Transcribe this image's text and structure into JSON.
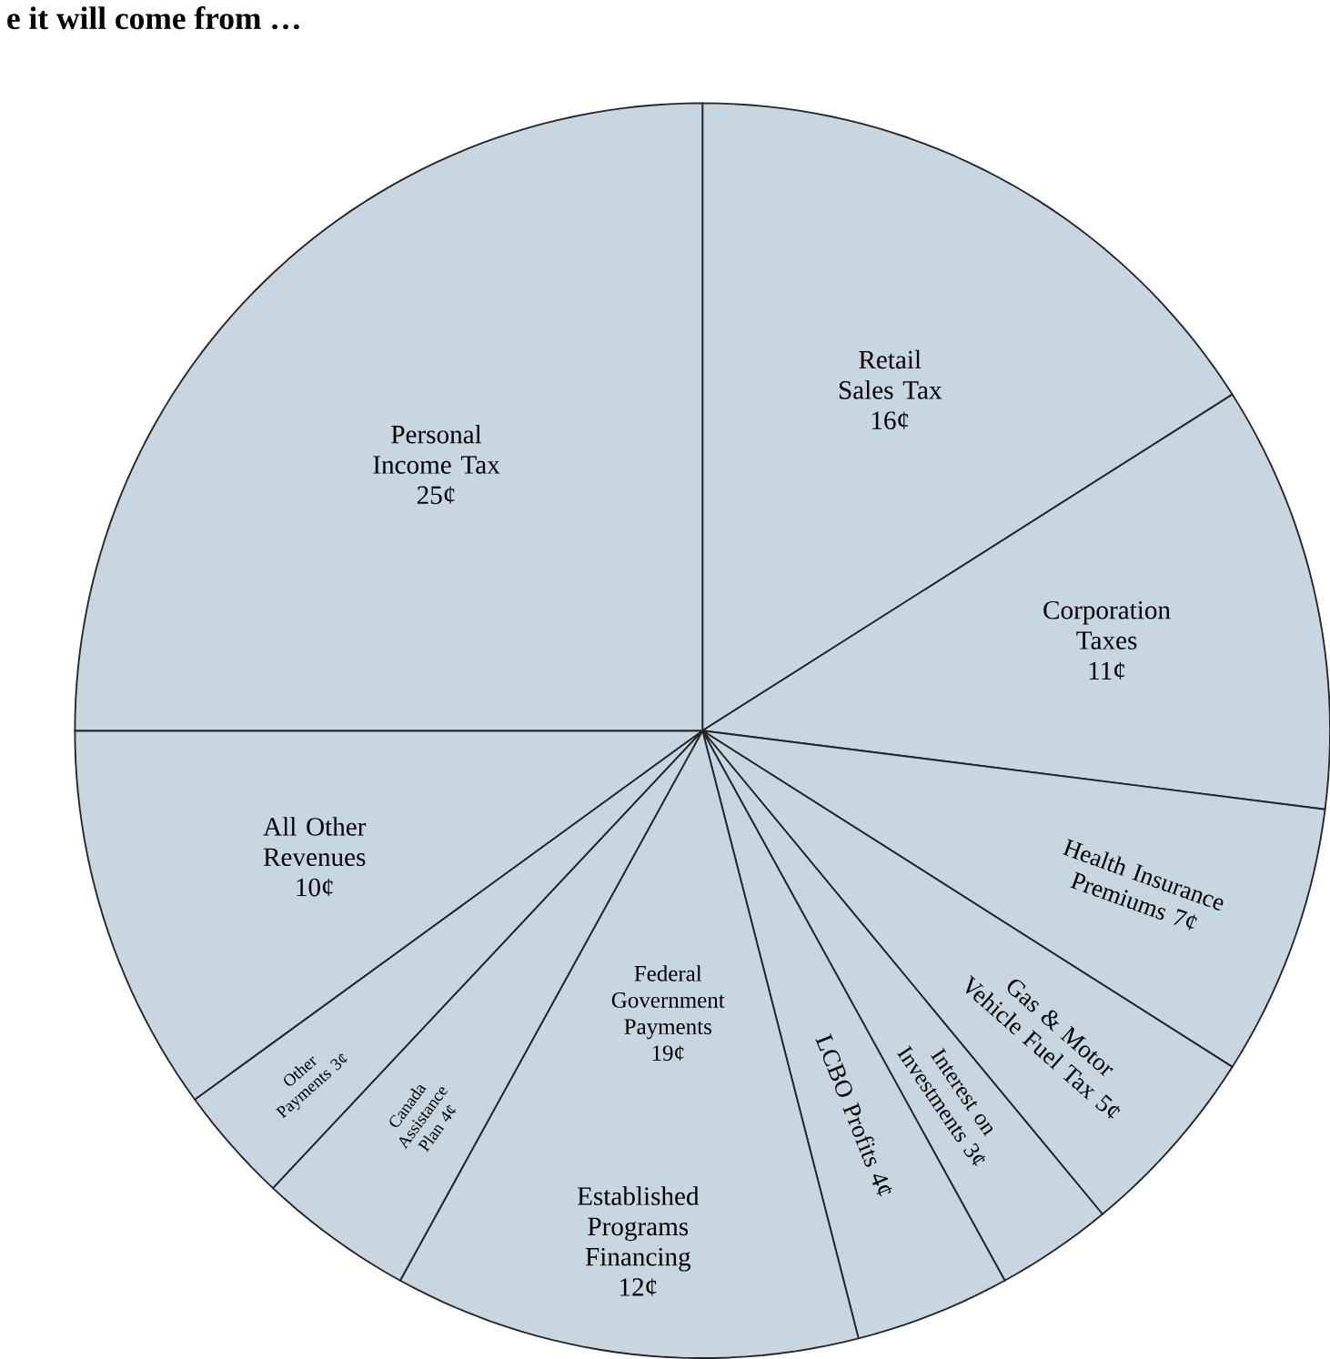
{
  "chart_data": {
    "type": "pie",
    "title": "e it will come from …",
    "categories": [
      "Retail Sales Tax",
      "Corporation Taxes",
      "Health Insurance Premiums",
      "Gas & Motor Vehicle Fuel Tax",
      "Interest on Investments",
      "LCBO Profits",
      "Established Programs Financing",
      "Canada Assistance Plan",
      "Other Payments",
      "All Other Revenues",
      "Personal Income Tax"
    ],
    "values": [
      16,
      11,
      7,
      5,
      3,
      4,
      12,
      4,
      3,
      10,
      25
    ],
    "value_labels": [
      "16¢",
      "11¢",
      "7¢",
      "5¢",
      "3¢",
      "4¢",
      "12¢",
      "4¢",
      "3¢",
      "10¢",
      "25¢"
    ],
    "colors": [
      "#c8d6e1",
      "#c8d6e1",
      "#c8d6e1",
      "#c8d6e1",
      "#c8d6e1",
      "#c8d6e1",
      "#c8d6e1",
      "#c8d6e1",
      "#c8d6e1",
      "#c8d6e1",
      "#c8d6e1"
    ],
    "annotations": [
      "Federal Government Payments 19¢"
    ]
  }
}
